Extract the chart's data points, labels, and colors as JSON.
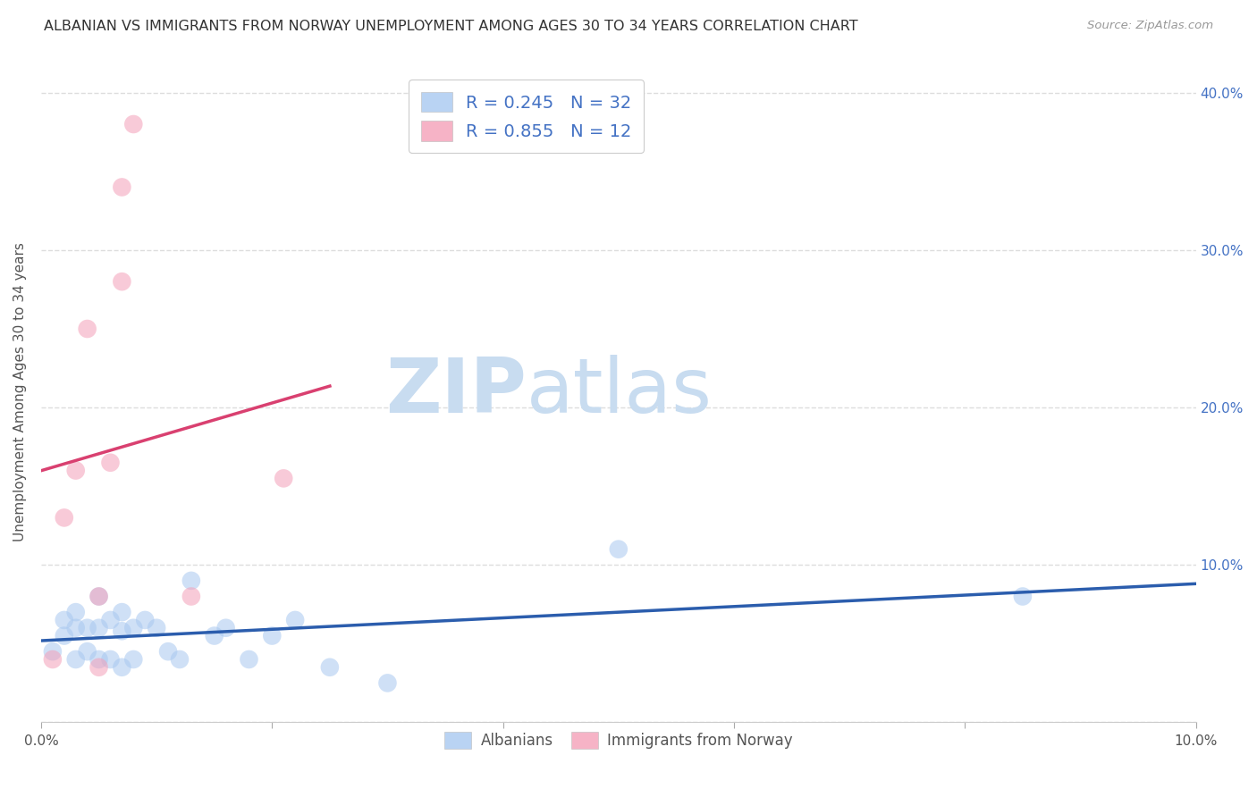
{
  "title": "ALBANIAN VS IMMIGRANTS FROM NORWAY UNEMPLOYMENT AMONG AGES 30 TO 34 YEARS CORRELATION CHART",
  "source": "Source: ZipAtlas.com",
  "ylabel": "Unemployment Among Ages 30 to 34 years",
  "xlim": [
    0.0,
    0.1
  ],
  "ylim": [
    0.0,
    0.42
  ],
  "xticks": [
    0.0,
    0.02,
    0.04,
    0.06,
    0.08,
    0.1
  ],
  "xticklabels": [
    "0.0%",
    "",
    "",
    "",
    "",
    "10.0%"
  ],
  "yticks": [
    0.0,
    0.1,
    0.2,
    0.3,
    0.4
  ],
  "yticklabels_left": [
    "",
    "",
    "",
    "",
    ""
  ],
  "yticklabels_right": [
    "",
    "10.0%",
    "20.0%",
    "30.0%",
    "40.0%"
  ],
  "blue_color": "#A8C8F0",
  "pink_color": "#F4A0B8",
  "blue_line_color": "#2B5DAD",
  "pink_line_color": "#D94070",
  "legend_border_color": "#CCCCCC",
  "grid_color": "#DDDDDD",
  "watermark_zip": "ZIP",
  "watermark_atlas": "atlas",
  "watermark_color_zip": "#C8DCF0",
  "watermark_color_atlas": "#C8DCF0",
  "R_blue": 0.245,
  "N_blue": 32,
  "R_pink": 0.855,
  "N_pink": 12,
  "albanians_x": [
    0.001,
    0.002,
    0.002,
    0.003,
    0.003,
    0.003,
    0.004,
    0.004,
    0.005,
    0.005,
    0.005,
    0.006,
    0.006,
    0.007,
    0.007,
    0.007,
    0.008,
    0.008,
    0.009,
    0.01,
    0.011,
    0.012,
    0.013,
    0.015,
    0.016,
    0.018,
    0.02,
    0.022,
    0.025,
    0.03,
    0.05,
    0.085
  ],
  "albanians_y": [
    0.045,
    0.055,
    0.065,
    0.04,
    0.06,
    0.07,
    0.045,
    0.06,
    0.04,
    0.06,
    0.08,
    0.04,
    0.065,
    0.035,
    0.058,
    0.07,
    0.04,
    0.06,
    0.065,
    0.06,
    0.045,
    0.04,
    0.09,
    0.055,
    0.06,
    0.04,
    0.055,
    0.065,
    0.035,
    0.025,
    0.11,
    0.08
  ],
  "norway_x": [
    0.001,
    0.002,
    0.003,
    0.004,
    0.005,
    0.005,
    0.006,
    0.007,
    0.007,
    0.008,
    0.013,
    0.021
  ],
  "norway_y": [
    0.04,
    0.13,
    0.16,
    0.25,
    0.08,
    0.035,
    0.165,
    0.28,
    0.34,
    0.38,
    0.08,
    0.155
  ],
  "dot_size": 220,
  "alpha": 0.55
}
